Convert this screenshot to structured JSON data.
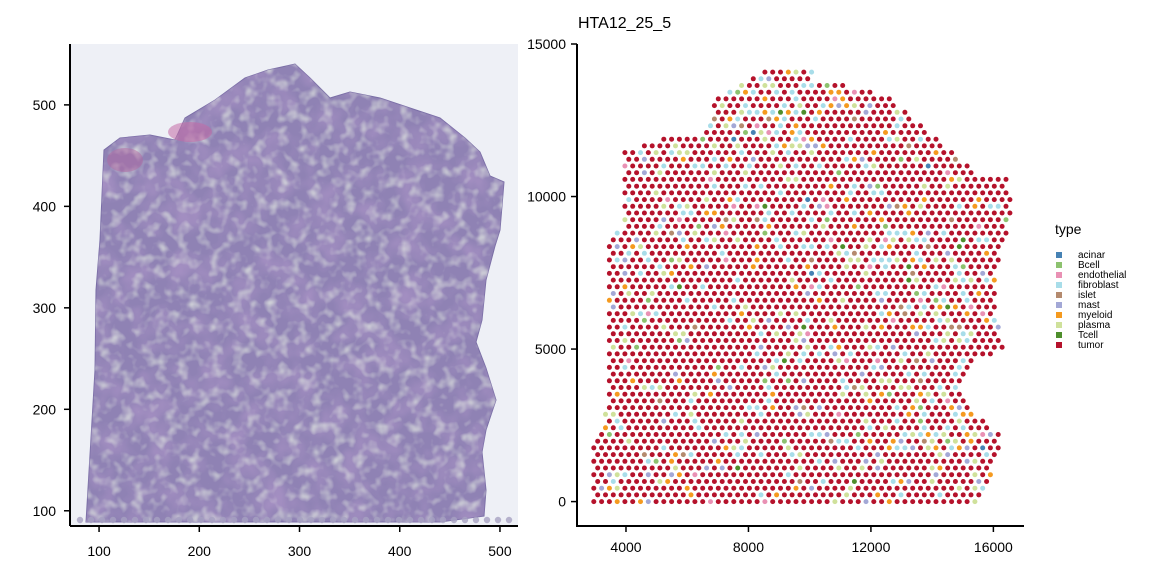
{
  "chart_data": [
    {
      "type": "image",
      "xlim": [
        72,
        518
      ],
      "ylim": [
        85,
        560
      ],
      "xticks": [
        100,
        200,
        300,
        400,
        500
      ],
      "yticks": [
        100,
        200,
        300,
        400,
        500
      ],
      "xtick_labels": [
        "100",
        "200",
        "300",
        "400",
        "500"
      ],
      "ytick_labels": [
        "100",
        "200",
        "300",
        "400",
        "500"
      ]
    },
    {
      "type": "scatter",
      "title": "HTA12_25_5",
      "xlim": [
        2400,
        17000
      ],
      "ylim": [
        -800,
        15000
      ],
      "xticks": [
        4000,
        8000,
        12000,
        16000
      ],
      "yticks": [
        0,
        5000,
        10000,
        15000
      ],
      "xtick_labels": [
        "4000",
        "8000",
        "12000",
        "16000"
      ],
      "ytick_labels": [
        "0",
        "5000",
        "10000",
        "15000"
      ],
      "legend": {
        "title": "type",
        "position": "right",
        "entries": [
          {
            "label": "acinar",
            "color": "#4682b4"
          },
          {
            "label": "Bcell",
            "color": "#8dc26f"
          },
          {
            "label": "endothelial",
            "color": "#e991b4"
          },
          {
            "label": "fibroblast",
            "color": "#a8dde9"
          },
          {
            "label": "islet",
            "color": "#b48a6e"
          },
          {
            "label": "mast",
            "color": "#a3a8d6"
          },
          {
            "label": "myeloid",
            "color": "#f59a1f"
          },
          {
            "label": "plasma",
            "color": "#cfe19b"
          },
          {
            "label": "Tcell",
            "color": "#4e8e2b"
          },
          {
            "label": "tumor",
            "color": "#b5122b"
          }
        ]
      },
      "outline": [
        [
          2950,
          0
        ],
        [
          2950,
          2000
        ],
        [
          3350,
          3000
        ],
        [
          3350,
          8500
        ],
        [
          3850,
          9000
        ],
        [
          3850,
          11500
        ],
        [
          5500,
          12000
        ],
        [
          6500,
          12000
        ],
        [
          7000,
          13300
        ],
        [
          8300,
          14000
        ],
        [
          9000,
          14300
        ],
        [
          10000,
          14300
        ],
        [
          10200,
          13700
        ],
        [
          11000,
          13700
        ],
        [
          12500,
          13300
        ],
        [
          14000,
          12000
        ],
        [
          14800,
          11300
        ],
        [
          15500,
          10700
        ],
        [
          16500,
          10600
        ],
        [
          16600,
          9500
        ],
        [
          16200,
          8000
        ],
        [
          16000,
          6600
        ],
        [
          16300,
          5000
        ],
        [
          15200,
          4500
        ],
        [
          15000,
          3700
        ],
        [
          15300,
          3000
        ],
        [
          16300,
          2200
        ],
        [
          16000,
          1000
        ],
        [
          15600,
          0
        ]
      ]
    }
  ]
}
